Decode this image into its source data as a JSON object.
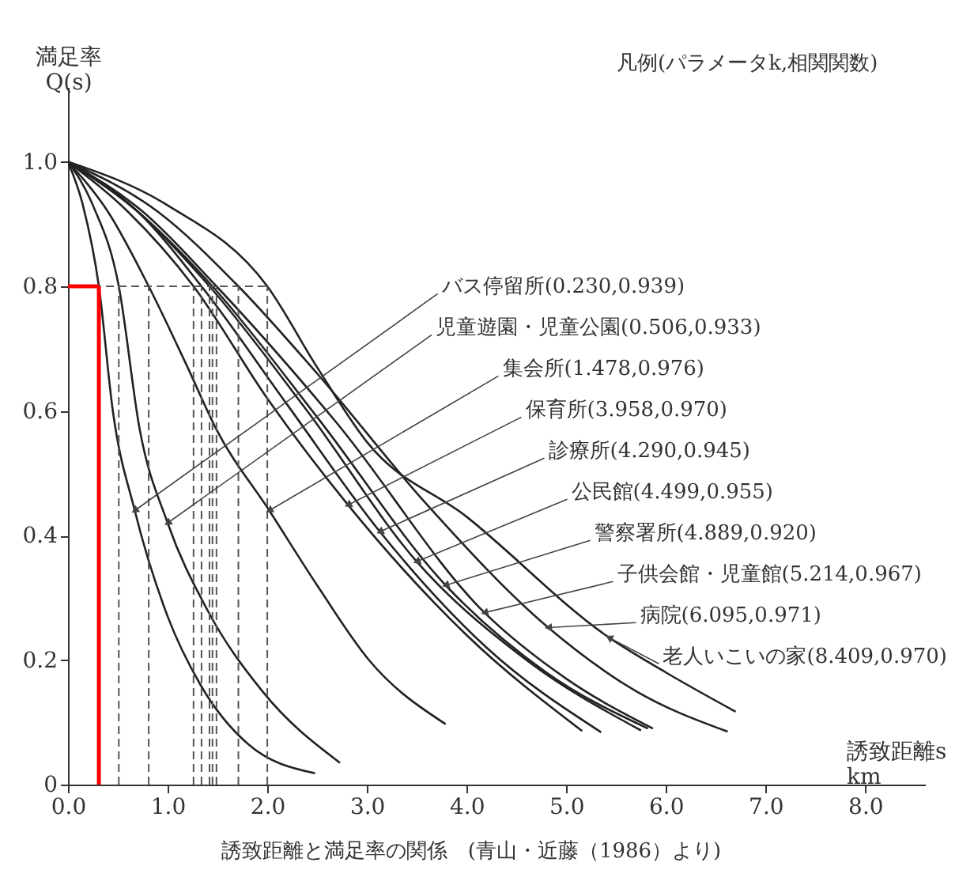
{
  "chart_data": {
    "type": "line",
    "xlabel": "誘致距離s\nkm",
    "ylabel": "満足率\nQ(s)",
    "legend_title": "凡例(パラメータk,相関関数)",
    "annotations": [
      "誘致距離と満足率の関係　(青山・近藤（1986）より)"
    ],
    "xlim": [
      0,
      8.6
    ],
    "ylim": [
      0,
      1.12
    ],
    "xticks": [
      {
        "value": 0,
        "label": "0.0"
      },
      {
        "value": 1,
        "label": "1.0"
      },
      {
        "value": 2,
        "label": "2.0"
      },
      {
        "value": 3,
        "label": "3.0"
      },
      {
        "value": 4,
        "label": "4.0"
      },
      {
        "value": 5,
        "label": "5.0"
      },
      {
        "value": 6,
        "label": "6.0"
      },
      {
        "value": 7,
        "label": "7.0"
      },
      {
        "value": 8,
        "label": "8.0"
      }
    ],
    "yticks": [
      0,
      0.2,
      0.4,
      0.6,
      0.8,
      {
        "value": 1,
        "label": "1.0"
      }
    ],
    "grid": false,
    "legend": "right",
    "series": [
      {
        "name": "バス停留所(0.230,0.939)",
        "color": "#222222",
        "x": [
          0,
          0.15,
          0.31,
          0.45,
          0.67,
          1.0,
          1.33,
          1.8,
          2.48
        ],
        "values": [
          1,
          0.93,
          0.8,
          0.6,
          0.44,
          0.27,
          0.16,
          0.066,
          0.018
        ]
      },
      {
        "name": "児童遊園・児童公園(0.506,0.933)",
        "color": "#222222",
        "x": [
          0,
          0.25,
          0.51,
          0.72,
          1.0,
          1.4,
          1.95,
          2.73
        ],
        "values": [
          1,
          0.93,
          0.8,
          0.57,
          0.42,
          0.28,
          0.15,
          0.035
        ]
      },
      {
        "name": "集会所(1.478,0.976)",
        "color": "#222222",
        "x": [
          0,
          0.4,
          0.81,
          1.2,
          1.49,
          2.02,
          2.5,
          3.02,
          3.79
        ],
        "values": [
          1,
          0.92,
          0.8,
          0.67,
          0.57,
          0.44,
          0.32,
          0.2,
          0.097
        ]
      },
      {
        "name": "保育所(3.958,0.970)",
        "color": "#222222",
        "x": [
          0,
          0.6,
          1.26,
          2.0,
          2.81,
          4.0,
          5.16
        ],
        "values": [
          1,
          0.92,
          0.8,
          0.62,
          0.449,
          0.24,
          0.086
        ]
      },
      {
        "name": "診療所(4.290,0.945)",
        "color": "#222222",
        "x": [
          0,
          0.7,
          1.34,
          2.2,
          3.13,
          4.2,
          5.35
        ],
        "values": [
          1,
          0.92,
          0.8,
          0.61,
          0.406,
          0.22,
          0.084
        ]
      },
      {
        "name": "公民館(4.499,0.955)",
        "color": "#222222",
        "x": [
          0,
          0.7,
          1.42,
          2.4,
          3.5,
          4.6,
          5.75
        ],
        "values": [
          1,
          0.92,
          0.8,
          0.6,
          0.358,
          0.2,
          0.087
        ]
      },
      {
        "name": "警察署所(4.889,0.920)",
        "color": "#222222",
        "x": [
          0,
          0.7,
          1.45,
          2.5,
          3.79,
          4.8,
          5.82
        ],
        "values": [
          1,
          0.92,
          0.8,
          0.59,
          0.32,
          0.18,
          0.09
        ]
      },
      {
        "name": "子供会館・児童館(5.214,0.967)",
        "color": "#222222",
        "x": [
          0,
          0.75,
          1.49,
          2.7,
          4.18,
          5.0,
          5.87
        ],
        "values": [
          1,
          0.92,
          0.8,
          0.58,
          0.276,
          0.17,
          0.09
        ]
      },
      {
        "name": "病院(6.095,0.971)",
        "color": "#222222",
        "x": [
          0,
          0.9,
          1.71,
          2.5,
          3.6,
          4.82,
          5.7,
          6.62
        ],
        "values": [
          1,
          0.92,
          0.8,
          0.66,
          0.45,
          0.252,
          0.15,
          0.085
        ]
      },
      {
        "name": "老人いこいの家(8.409,0.970)",
        "color": "#222222",
        "x": [
          0,
          1.0,
          2.0,
          2.5,
          3.0,
          4.0,
          5.43,
          6.0,
          6.7
        ],
        "values": [
          1,
          0.93,
          0.8,
          0.67,
          0.55,
          0.43,
          0.236,
          0.18,
          0.117
        ]
      }
    ],
    "ref_lines": [
      {
        "axis": "y",
        "value": 0.8,
        "color": "#555555",
        "line_style": "dashed"
      },
      {
        "axis": "x",
        "value": 0.31,
        "color": "#ff0000",
        "line_style": "solid"
      },
      {
        "axis": "x",
        "value": 0.51,
        "color": "#555555",
        "line_style": "dashed"
      },
      {
        "axis": "x",
        "value": 0.81,
        "color": "#555555",
        "line_style": "dashed"
      },
      {
        "axis": "x",
        "value": 1.26,
        "color": "#555555",
        "line_style": "dashed"
      },
      {
        "axis": "x",
        "value": 1.34,
        "color": "#555555",
        "line_style": "dashed"
      },
      {
        "axis": "x",
        "value": 1.42,
        "color": "#555555",
        "line_style": "dashed"
      },
      {
        "axis": "x",
        "value": 1.45,
        "color": "#555555",
        "line_style": "dashed"
      },
      {
        "axis": "x",
        "value": 1.49,
        "color": "#555555",
        "line_style": "dashed"
      },
      {
        "axis": "x",
        "value": 1.71,
        "color": "#555555",
        "line_style": "dashed"
      },
      {
        "axis": "x",
        "value": 2.0,
        "color": "#555555",
        "line_style": "dashed"
      }
    ]
  }
}
